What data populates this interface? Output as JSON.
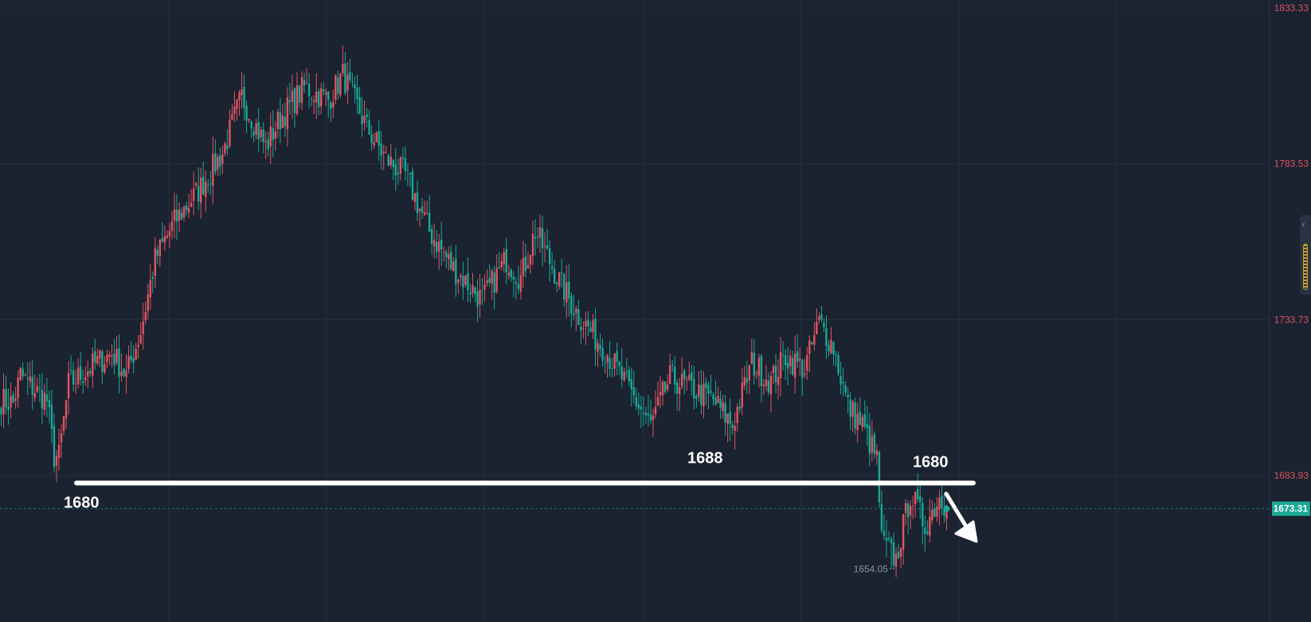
{
  "chart_data": {
    "type": "candlestick",
    "y_axis": {
      "ticks": [
        "1833.33",
        "1783.53",
        "1733.73",
        "1683.93"
      ],
      "range": [
        1630,
        1835
      ]
    },
    "current_price": "1673.31",
    "low_label": "1654.05",
    "low_value": 1654.05,
    "support_level": 1680,
    "annotations": [
      "1680",
      "1688",
      "1680"
    ],
    "trend_arrow": "down",
    "grid": true,
    "colors": {
      "background": "#1b2230",
      "up": "#e05562",
      "down": "#19a995",
      "axis_label": "#d9525f",
      "price_tag_bg": "#19a995",
      "grid": "#253041",
      "annotation": "#ffffff"
    }
  },
  "controls": {
    "scale_handle_icon": "chevron-left-icon"
  }
}
